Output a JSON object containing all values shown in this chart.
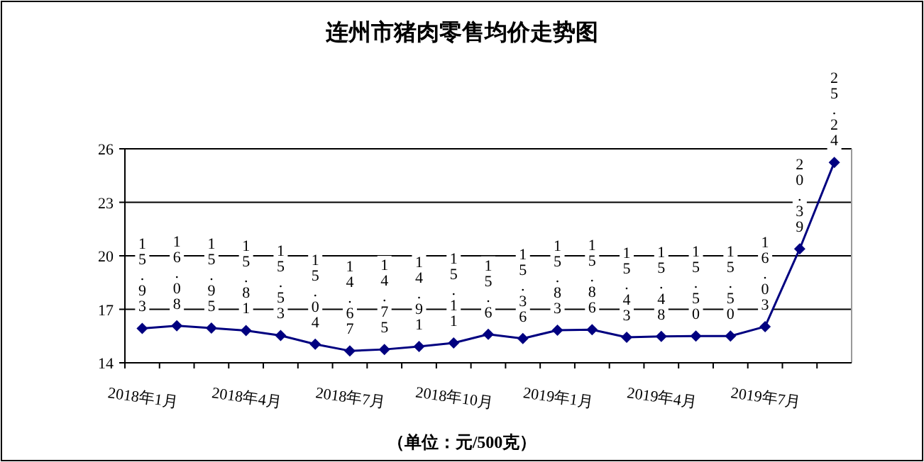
{
  "chart_data": {
    "type": "line",
    "title": "连州市猪肉零售均价走势图",
    "xlabel": "（单位：元/500克）",
    "categories": [
      "2018年1月",
      null,
      null,
      "2018年4月",
      null,
      null,
      "2018年7月",
      null,
      null,
      "2018年10月",
      null,
      null,
      "2019年1月",
      null,
      null,
      "2019年4月",
      null,
      null,
      "2019年7月",
      null,
      null
    ],
    "series": [
      {
        "color": "#000080",
        "values": [
          15.93,
          16.08,
          15.95,
          15.81,
          15.53,
          15.04,
          14.67,
          14.75,
          14.91,
          15.11,
          15.6,
          15.36,
          15.83,
          15.86,
          15.43,
          15.48,
          15.5,
          15.5,
          16.03,
          20.39,
          25.24
        ],
        "value_labels": [
          "15.93",
          "16.08",
          "15.95",
          "15.81",
          "15.53",
          "15.04",
          "14.67",
          "14.75",
          "14.91",
          "15.11",
          "15.6",
          "15.36",
          "15.83",
          "15.86",
          "15.43",
          "15.48",
          "15.50",
          "15.50",
          "16.03",
          "20.39",
          "25.24"
        ]
      }
    ],
    "ylim": [
      14,
      26
    ],
    "yticks": [
      14,
      17,
      20,
      23,
      26
    ],
    "grid": "y",
    "marker": "diamond",
    "line_style": "solid"
  }
}
